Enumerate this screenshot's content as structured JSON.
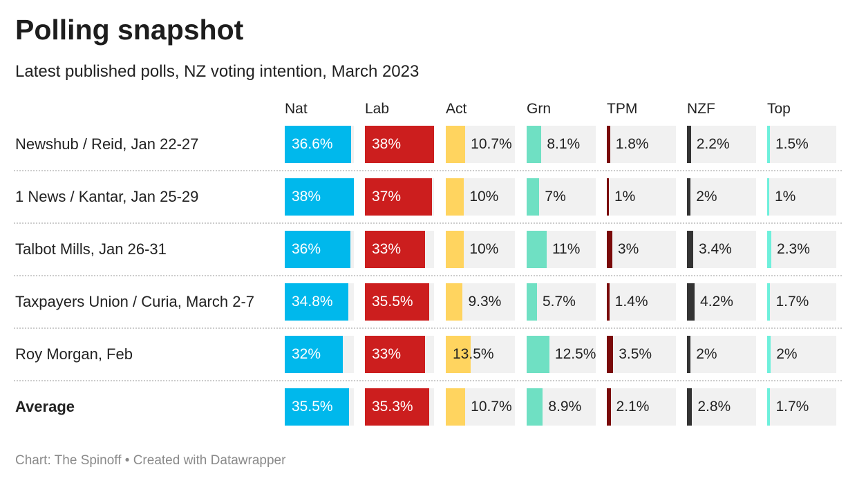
{
  "title": "Polling snapshot",
  "subtitle": "Latest published polls, NZ voting intention, March 2023",
  "footer": "Chart: The Spinoff • Created with Datawrapper",
  "chart_data": {
    "type": "table",
    "bar_scale_max": 38,
    "columns": [
      {
        "name": "Nat",
        "color": "#00b8ec",
        "label_inside": true
      },
      {
        "name": "Lab",
        "color": "#cc1e1e",
        "label_inside": true
      },
      {
        "name": "Act",
        "color": "#ffd45f",
        "label_inside": false
      },
      {
        "name": "Grn",
        "color": "#6fe0c3",
        "label_inside": false
      },
      {
        "name": "TPM",
        "color": "#7a0a0a",
        "label_inside": false
      },
      {
        "name": "NZF",
        "color": "#333333",
        "label_inside": false
      },
      {
        "name": "Top",
        "color": "#6ef0dc",
        "label_inside": false
      }
    ],
    "rows": [
      {
        "label": "Newshub / Reid, Jan 22-27",
        "values": [
          36.6,
          38,
          10.7,
          8.1,
          1.8,
          2.2,
          1.5
        ],
        "labels": [
          "36.6%",
          "38%",
          "10.7%",
          "8.1%",
          "1.8%",
          "2.2%",
          "1.5%"
        ]
      },
      {
        "label": "1 News / Kantar, Jan 25-29",
        "values": [
          38,
          37,
          10,
          7,
          1,
          2,
          1
        ],
        "labels": [
          "38%",
          "37%",
          "10%",
          "7%",
          "1%",
          "2%",
          "1%"
        ]
      },
      {
        "label": "Talbot Mills, Jan 26-31",
        "values": [
          36,
          33,
          10,
          11,
          3,
          3.4,
          2.3
        ],
        "labels": [
          "36%",
          "33%",
          "10%",
          "11%",
          "3%",
          "3.4%",
          "2.3%"
        ]
      },
      {
        "label": "Taxpayers Union / Curia, March 2-7",
        "values": [
          34.8,
          35.5,
          9.3,
          5.7,
          1.4,
          4.2,
          1.7
        ],
        "labels": [
          "34.8%",
          "35.5%",
          "9.3%",
          "5.7%",
          "1.4%",
          "4.2%",
          "1.7%"
        ]
      },
      {
        "label": "Roy Morgan, Feb",
        "values": [
          32,
          33,
          13.5,
          12.5,
          3.5,
          2,
          2
        ],
        "labels": [
          "32%",
          "33%",
          "13.5%",
          "12.5%",
          "3.5%",
          "2%",
          "2%"
        ]
      },
      {
        "label": "Average",
        "bold": true,
        "values": [
          35.5,
          35.3,
          10.7,
          8.9,
          2.1,
          2.8,
          1.7
        ],
        "labels": [
          "35.5%",
          "35.3%",
          "10.7%",
          "8.9%",
          "2.1%",
          "2.8%",
          "1.7%"
        ]
      }
    ]
  }
}
